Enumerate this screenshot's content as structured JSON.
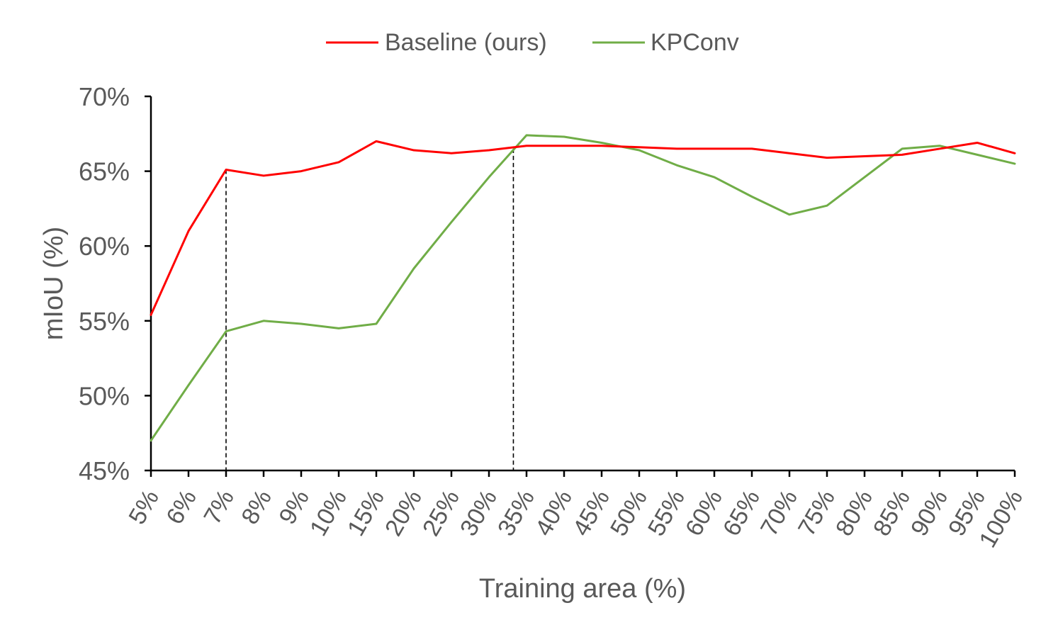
{
  "chart_data": {
    "type": "line",
    "title": "",
    "xlabel": "Training area (%)",
    "ylabel": "mIoU (%)",
    "categories": [
      "5%",
      "6%",
      "7%",
      "8%",
      "9%",
      "10%",
      "15%",
      "20%",
      "25%",
      "30%",
      "35%",
      "40%",
      "45%",
      "50%",
      "55%",
      "60%",
      "65%",
      "70%",
      "75%",
      "80%",
      "85%",
      "90%",
      "95%",
      "100%"
    ],
    "ylim": [
      45,
      70
    ],
    "yticks": [
      45,
      50,
      55,
      60,
      65,
      70
    ],
    "ytick_labels": [
      "45%",
      "50%",
      "55%",
      "60%",
      "65%",
      "70%"
    ],
    "grid": false,
    "legend_position": "top-center",
    "series": [
      {
        "name": "Baseline (ours)",
        "color": "#ff0000",
        "values": [
          55.4,
          61.0,
          65.1,
          64.7,
          65.0,
          65.6,
          67.0,
          66.4,
          66.2,
          66.4,
          66.7,
          66.7,
          66.7,
          66.6,
          66.5,
          66.5,
          66.5,
          66.2,
          65.9,
          66.0,
          66.1,
          66.5,
          66.9,
          66.2
        ]
      },
      {
        "name": "KPConv",
        "color": "#70ad47",
        "values": [
          47.0,
          50.7,
          54.3,
          55.0,
          54.8,
          54.5,
          54.8,
          58.5,
          61.6,
          64.6,
          67.4,
          67.3,
          66.9,
          66.4,
          65.4,
          64.6,
          63.3,
          62.1,
          62.7,
          64.6,
          66.5,
          66.7,
          66.1,
          65.5
        ]
      }
    ],
    "reference_lines": [
      {
        "x": "7%",
        "y": 65.1,
        "style": "dashed",
        "color": "#000000"
      },
      {
        "x": "30%",
        "y": 66.5,
        "offset": 0.65,
        "style": "dashed",
        "color": "#000000"
      }
    ]
  }
}
